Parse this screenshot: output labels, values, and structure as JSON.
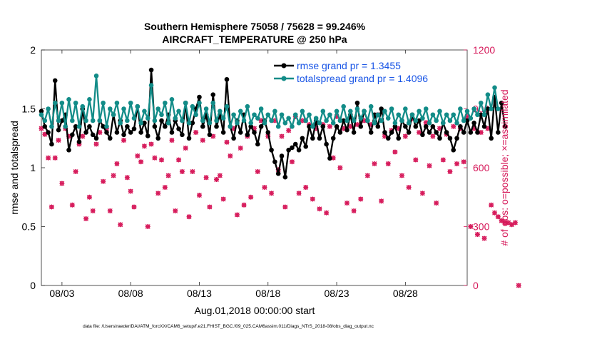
{
  "chart_data": {
    "type": "line",
    "title_line1": "Southern Hemisphere 75058 / 75628 = 99.246%",
    "title_line2": "AIRCRAFT_TEMPERATURE @ 250 hPa",
    "xlabel": "Aug.01,2018 00:00:00 start",
    "ylabel_left": "rmse and totalspread",
    "ylabel_right": "# of obs: o=possible; ×=assimilated",
    "footnote": "data file: /Users/raeder/DAI/ATM_forcXX/CAM6_setup/f.e21.FHIST_BGC.f09_025.CAM6assim.011/Diags_NTrS_2018-08/obs_diag_output.nc",
    "xlim": [
      1.5,
      32.5
    ],
    "ylim_left": [
      0,
      2
    ],
    "ylim_right": [
      0,
      1200
    ],
    "xticks": [
      3,
      8,
      13,
      18,
      23,
      28
    ],
    "xtick_labels": [
      "08/03",
      "08/08",
      "08/13",
      "08/18",
      "08/23",
      "08/28"
    ],
    "yticks_left": [
      0,
      0.5,
      1,
      1.5,
      2
    ],
    "ytick_labels_left": [
      "0",
      "0.5",
      "1",
      "1.5",
      "2"
    ],
    "yticks_right": [
      0,
      300,
      600,
      900,
      1200
    ],
    "ytick_labels_right": [
      "0",
      "300",
      "600",
      "900",
      "1200"
    ],
    "colors": {
      "rmse": "#000000",
      "spread": "#128c88",
      "obs": "#d6195a",
      "title": "#000000",
      "legend_text": "#1a56e6"
    },
    "series": [
      {
        "name": "rmse grand pr = 1.3455",
        "key": "rmse",
        "x_start": 1.5,
        "x_step": 0.25,
        "values": [
          1.48,
          1.35,
          1.3,
          1.2,
          1.74,
          1.32,
          1.4,
          1.45,
          1.15,
          1.28,
          1.35,
          1.22,
          1.5,
          1.3,
          1.35,
          1.28,
          1.25,
          1.4,
          1.35,
          1.3,
          1.25,
          1.45,
          1.3,
          1.4,
          1.28,
          1.35,
          1.3,
          1.33,
          1.52,
          1.3,
          1.38,
          1.27,
          1.83,
          1.35,
          1.25,
          1.4,
          1.35,
          1.45,
          1.3,
          1.4,
          1.33,
          1.28,
          1.55,
          1.25,
          1.38,
          1.5,
          1.6,
          1.35,
          1.45,
          1.28,
          1.62,
          1.35,
          1.45,
          1.3,
          1.75,
          1.35,
          1.25,
          1.4,
          1.3,
          1.45,
          1.28,
          1.35,
          1.3,
          1.2,
          1.35,
          1.4,
          1.3,
          1.15,
          1.05,
          0.95,
          1.1,
          0.92,
          1.15,
          1.17,
          1.2,
          1.15,
          1.25,
          1.18,
          1.35,
          1.25,
          1.4,
          1.25,
          1.35,
          1.2,
          1.08,
          1.25,
          1.35,
          1.3,
          1.4,
          1.32,
          1.45,
          1.3,
          1.55,
          1.35,
          1.48,
          1.4,
          1.3,
          1.45,
          1.35,
          1.5,
          1.3,
          1.25,
          1.3,
          1.35,
          1.25,
          1.4,
          1.35,
          1.3,
          1.45,
          1.35,
          1.4,
          1.28,
          1.35,
          1.3,
          1.35,
          1.3,
          1.25,
          1.38,
          1.3,
          1.25,
          1.15,
          1.25,
          1.35,
          1.3,
          1.4,
          1.3,
          1.38,
          1.3,
          1.45,
          1.35,
          1.5,
          1.25,
          1.6,
          1.3,
          1.55,
          1.35
        ]
      },
      {
        "name": "totalspread grand pr = 1.4096",
        "key": "spread",
        "x_start": 1.5,
        "x_step": 0.25,
        "values": [
          1.45,
          1.4,
          1.5,
          1.35,
          1.55,
          1.4,
          1.55,
          1.35,
          1.58,
          1.4,
          1.55,
          1.35,
          1.52,
          1.4,
          1.58,
          1.4,
          1.78,
          1.4,
          1.55,
          1.35,
          1.5,
          1.45,
          1.55,
          1.38,
          1.5,
          1.4,
          1.55,
          1.42,
          1.52,
          1.38,
          1.48,
          1.42,
          1.7,
          1.4,
          1.5,
          1.45,
          1.55,
          1.38,
          1.58,
          1.42,
          1.48,
          1.4,
          1.55,
          1.38,
          1.52,
          1.45,
          1.55,
          1.4,
          1.5,
          1.38,
          1.55,
          1.4,
          1.48,
          1.42,
          1.52,
          1.35,
          1.45,
          1.38,
          1.48,
          1.4,
          1.52,
          1.38,
          1.45,
          1.42,
          1.5,
          1.38,
          1.45,
          1.4,
          1.48,
          1.35,
          1.45,
          1.38,
          1.42,
          1.35,
          1.45,
          1.38,
          1.48,
          1.4,
          1.45,
          1.35,
          1.42,
          1.38,
          1.48,
          1.4,
          1.45,
          1.38,
          1.48,
          1.4,
          1.52,
          1.4,
          1.48,
          1.4,
          1.5,
          1.42,
          1.48,
          1.4,
          1.52,
          1.38,
          1.45,
          1.4,
          1.48,
          1.42,
          1.5,
          1.38,
          1.45,
          1.4,
          1.5,
          1.38,
          1.45,
          1.4,
          1.48,
          1.42,
          1.5,
          1.38,
          1.45,
          1.4,
          1.48,
          1.38,
          1.45,
          1.4,
          1.45,
          1.38,
          1.5,
          1.4,
          1.48,
          1.42,
          1.5,
          1.45,
          1.55,
          1.45,
          1.62,
          1.5,
          1.68,
          1.5
        ]
      }
    ],
    "obs_series": {
      "name": "# of obs",
      "x_start": 1.5,
      "x_step": 0.25,
      "values": [
        800,
        770,
        650,
        400,
        650,
        740,
        520,
        800,
        760,
        410,
        580,
        720,
        760,
        340,
        450,
        380,
        720,
        780,
        530,
        800,
        380,
        560,
        620,
        310,
        740,
        550,
        480,
        400,
        660,
        630,
        710,
        300,
        720,
        650,
        470,
        640,
        500,
        560,
        740,
        380,
        640,
        580,
        700,
        350,
        580,
        780,
        460,
        740,
        550,
        400,
        760,
        540,
        560,
        440,
        730,
        660,
        800,
        360,
        700,
        410,
        760,
        450,
        800,
        580,
        840,
        500,
        760,
        470,
        840,
        590,
        760,
        400,
        790,
        630,
        860,
        470,
        840,
        500,
        820,
        440,
        800,
        390,
        820,
        370,
        810,
        650,
        860,
        600,
        800,
        420,
        810,
        380,
        820,
        440,
        840,
        560,
        820,
        620,
        870,
        430,
        760,
        620,
        790,
        680,
        800,
        560,
        760,
        500,
        850,
        640,
        780,
        470,
        830,
        610,
        760,
        420,
        800,
        640,
        770,
        580,
        810,
        620,
        800,
        630,
        860,
        300,
        800,
        260,
        780,
        240,
        800,
        410,
        370,
        350,
        330,
        320,
        320,
        310,
        320,
        0
      ]
    }
  }
}
